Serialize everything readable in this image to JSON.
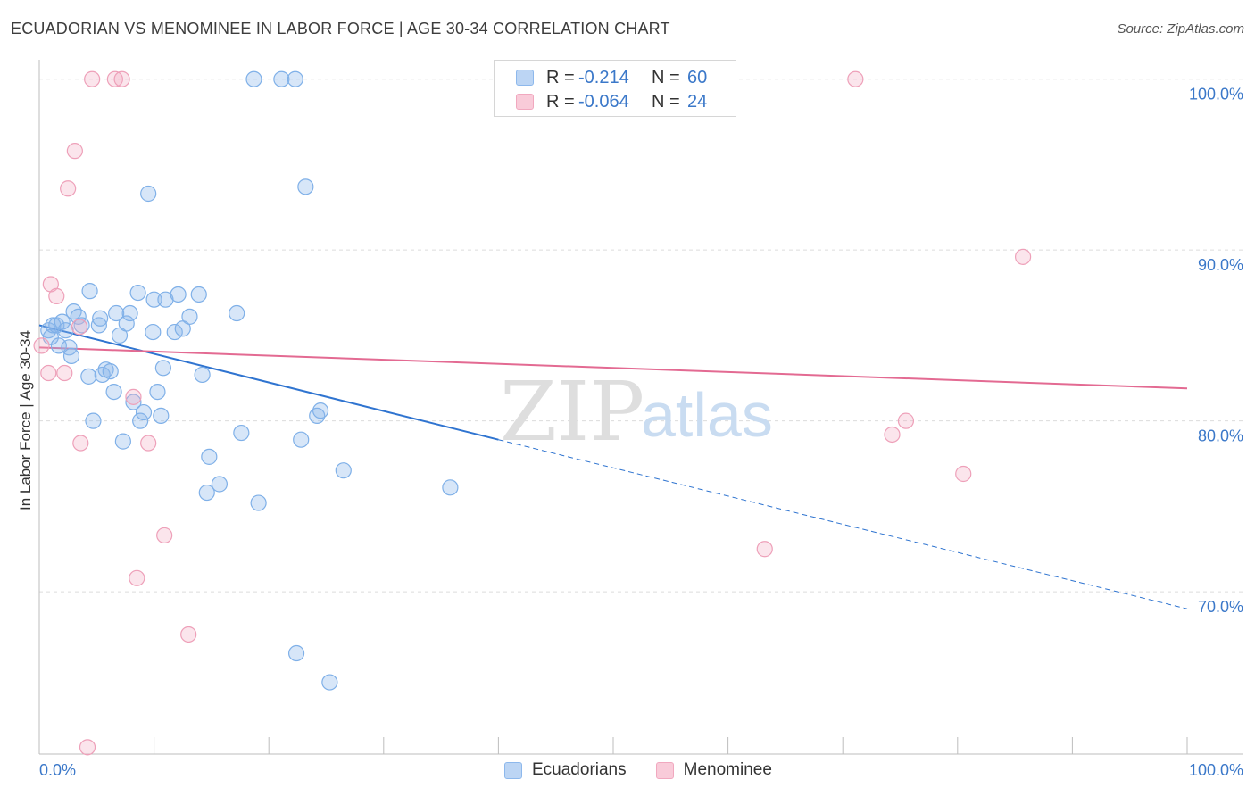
{
  "title": "ECUADORIAN VS MENOMINEE IN LABOR FORCE | AGE 30-34 CORRELATION CHART",
  "source": "Source: ZipAtlas.com",
  "watermark": {
    "zip": "ZIP",
    "atlas": "atlas"
  },
  "legend": {
    "r_label": "R =",
    "n_label": "N =",
    "rows": [
      {
        "r": "-0.214",
        "n": "60"
      },
      {
        "r": "-0.064",
        "n": "24"
      }
    ]
  },
  "chart_data": {
    "type": "scatter",
    "title": "ECUADORIAN VS MENOMINEE IN LABOR FORCE | AGE 30-34 CORRELATION CHART",
    "xlabel": "",
    "ylabel": "In Labor Force | Age 30-34",
    "xlim": [
      0,
      100
    ],
    "ylim": [
      60.5,
      101.5
    ],
    "x_tick_labels": [
      "0.0%",
      "100.0%"
    ],
    "y_ticks": [
      70,
      80,
      90,
      100
    ],
    "y_tick_labels": [
      "70.0%",
      "80.0%",
      "90.0%",
      "100.0%"
    ],
    "grid": true,
    "legend_placement": "bottom-center",
    "colors": {
      "ecuadorians": "#8db8ec",
      "menominee": "#f1a8bf",
      "ecuadorians_line": "#2f74d0",
      "menominee_line": "#e36a92",
      "tick_text": "#3b78c9"
    },
    "series": [
      {
        "name": "Ecuadorians",
        "r": -0.214,
        "n": 60,
        "trend": {
          "x": [
            0,
            40,
            100
          ],
          "y": [
            85.6,
            78.9,
            69.0
          ]
        },
        "points": [
          [
            18.7,
            100
          ],
          [
            21.1,
            100
          ],
          [
            22.3,
            100
          ],
          [
            9.5,
            93.3
          ],
          [
            23.2,
            93.7
          ],
          [
            0.8,
            85.3
          ],
          [
            1.0,
            84.9
          ],
          [
            1.2,
            85.6
          ],
          [
            1.5,
            85.6
          ],
          [
            1.7,
            84.4
          ],
          [
            2.0,
            85.8
          ],
          [
            2.3,
            85.3
          ],
          [
            2.6,
            84.3
          ],
          [
            2.8,
            83.8
          ],
          [
            3.0,
            86.4
          ],
          [
            3.4,
            86.1
          ],
          [
            3.7,
            85.6
          ],
          [
            4.3,
            82.6
          ],
          [
            4.4,
            87.6
          ],
          [
            4.7,
            80.0
          ],
          [
            5.2,
            85.6
          ],
          [
            5.3,
            86.0
          ],
          [
            5.5,
            82.7
          ],
          [
            5.8,
            83.0
          ],
          [
            6.2,
            82.9
          ],
          [
            6.5,
            81.7
          ],
          [
            6.7,
            86.3
          ],
          [
            7.0,
            85.0
          ],
          [
            7.3,
            78.8
          ],
          [
            7.6,
            85.7
          ],
          [
            7.9,
            86.3
          ],
          [
            8.2,
            81.1
          ],
          [
            8.6,
            87.5
          ],
          [
            8.8,
            80.0
          ],
          [
            9.1,
            80.5
          ],
          [
            9.9,
            85.2
          ],
          [
            10.0,
            87.1
          ],
          [
            10.3,
            81.7
          ],
          [
            10.6,
            80.3
          ],
          [
            10.8,
            83.1
          ],
          [
            11.0,
            87.1
          ],
          [
            11.8,
            85.2
          ],
          [
            12.1,
            87.4
          ],
          [
            12.5,
            85.4
          ],
          [
            13.1,
            86.1
          ],
          [
            13.9,
            87.4
          ],
          [
            14.2,
            82.7
          ],
          [
            14.8,
            77.9
          ],
          [
            14.6,
            75.8
          ],
          [
            15.7,
            76.3
          ],
          [
            17.2,
            86.3
          ],
          [
            17.6,
            79.3
          ],
          [
            19.1,
            75.2
          ],
          [
            22.8,
            78.9
          ],
          [
            24.2,
            80.3
          ],
          [
            24.5,
            80.6
          ],
          [
            26.5,
            77.1
          ],
          [
            35.8,
            76.1
          ],
          [
            22.4,
            66.4
          ],
          [
            25.3,
            64.7
          ]
        ]
      },
      {
        "name": "Menominee",
        "r": -0.064,
        "n": 24,
        "trend": {
          "x": [
            0,
            100
          ],
          "y": [
            84.3,
            81.9
          ]
        },
        "points": [
          [
            0.2,
            84.4
          ],
          [
            0.8,
            82.8
          ],
          [
            1.0,
            88.0
          ],
          [
            1.5,
            87.3
          ],
          [
            2.2,
            82.8
          ],
          [
            2.5,
            93.6
          ],
          [
            3.1,
            95.8
          ],
          [
            3.5,
            85.5
          ],
          [
            3.6,
            78.7
          ],
          [
            4.6,
            100
          ],
          [
            6.6,
            100
          ],
          [
            7.2,
            100
          ],
          [
            8.2,
            81.4
          ],
          [
            8.5,
            70.8
          ],
          [
            9.5,
            78.7
          ],
          [
            10.9,
            73.3
          ],
          [
            13.0,
            67.5
          ],
          [
            4.2,
            60.9
          ],
          [
            63.2,
            72.5
          ],
          [
            71.1,
            100
          ],
          [
            74.3,
            79.2
          ],
          [
            75.5,
            80.0
          ],
          [
            80.5,
            76.9
          ],
          [
            85.7,
            89.6
          ]
        ]
      }
    ]
  }
}
